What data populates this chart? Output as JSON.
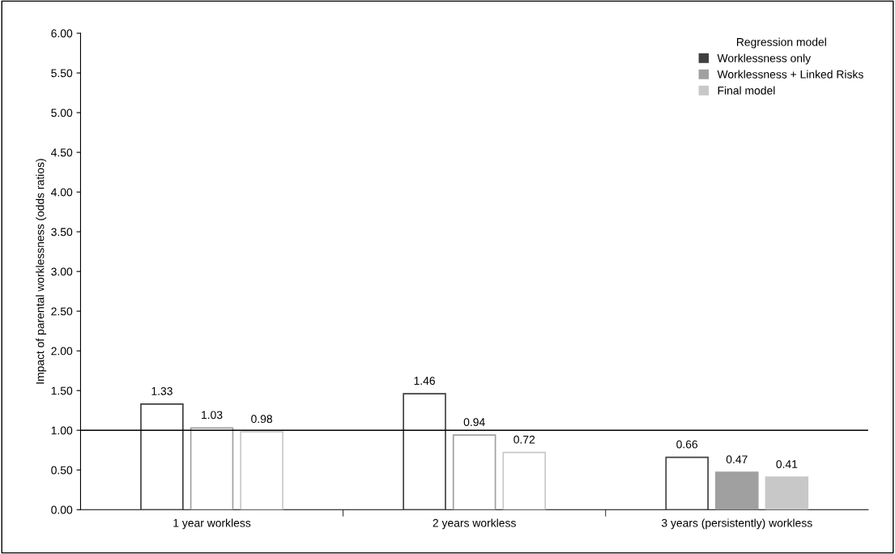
{
  "chart_data": {
    "type": "bar",
    "ylabel": "Impact of parental worklessness (odds ratios)",
    "categories": [
      "1 year workless",
      "2 years workless",
      "3 years (persistently) workless"
    ],
    "series": [
      {
        "name": "Worklessness only",
        "color": "#404040",
        "colors": [
          "#ffffff",
          "#ffffff",
          "#ffffff"
        ],
        "values": [
          1.33,
          1.46,
          0.66
        ]
      },
      {
        "name": "Worklessness + Linked Risks",
        "color": "#a0a0a0",
        "colors": [
          "#ffffff",
          "#ffffff",
          "#a0a0a0"
        ],
        "values": [
          1.03,
          0.94,
          0.47
        ]
      },
      {
        "name": "Final model",
        "color": "#c8c8c8",
        "colors": [
          "#ffffff",
          "#ffffff",
          "#c8c8c8"
        ],
        "values": [
          0.98,
          0.72,
          0.41
        ]
      }
    ],
    "data_labels": true,
    "ylim": [
      0,
      6
    ],
    "yticks": [
      {
        "value": 0,
        "label": "0.00"
      },
      {
        "value": 0.5,
        "label": "0.50"
      },
      {
        "value": 1,
        "label": "1.00"
      },
      {
        "value": 1.5,
        "label": "1.50"
      },
      {
        "value": 2,
        "label": "2.00"
      },
      {
        "value": 2.5,
        "label": "2.50"
      },
      {
        "value": 3,
        "label": "3.00"
      },
      {
        "value": 3.5,
        "label": "3.50"
      },
      {
        "value": 4,
        "label": "4.00"
      },
      {
        "value": 4.5,
        "label": "4.50"
      },
      {
        "value": 5,
        "label": "5.00"
      },
      {
        "value": 5.5,
        "label": "5.50"
      },
      {
        "value": 6,
        "label": "6.00"
      }
    ],
    "ref_lines": [
      {
        "axis": "y",
        "value": 1,
        "color": "#000000"
      }
    ],
    "legend": "top right",
    "legend_title": "Regression model",
    "grid": false
  }
}
